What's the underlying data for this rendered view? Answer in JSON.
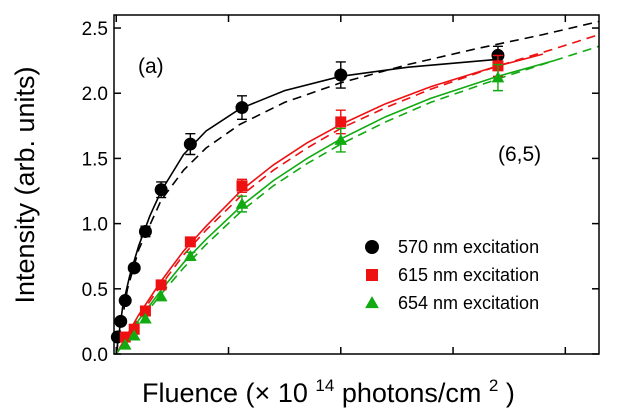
{
  "chart_data": {
    "type": "scatter",
    "xlabel_main": "Fluence (× 10",
    "xlabel_exp": "14",
    "xlabel_rest": " photons/cm",
    "xlabel_sup": "2",
    "xlabel_close": ")",
    "ylabel": "Intensity (arb. units)",
    "xlim": [
      -0.1,
      21.5
    ],
    "ylim": [
      0,
      2.6
    ],
    "xticks": [
      0,
      5,
      10,
      15,
      20
    ],
    "yticks": [
      {
        "value": 0.0,
        "label": "0.0"
      },
      {
        "value": 0.5,
        "label": "0.5"
      },
      {
        "value": 1.0,
        "label": "1.0"
      },
      {
        "value": 1.5,
        "label": "1.5"
      },
      {
        "value": 2.0,
        "label": "2.0"
      },
      {
        "value": 2.5,
        "label": "2.5"
      }
    ],
    "panel_label": "(a)",
    "chirality_label": "(6,5)",
    "grid": false,
    "legend_position": "bottom-right",
    "series": [
      {
        "name": "570 nm excitation",
        "color": "#000000",
        "marker": "circle",
        "points": [
          {
            "x": 0.05,
            "y": 0.13,
            "err": 0
          },
          {
            "x": 0.2,
            "y": 0.25,
            "err": 0
          },
          {
            "x": 0.4,
            "y": 0.41,
            "err": 0
          },
          {
            "x": 0.8,
            "y": 0.66,
            "err": 0
          },
          {
            "x": 1.3,
            "y": 0.94,
            "err": 0.04
          },
          {
            "x": 2.0,
            "y": 1.26,
            "err": 0.06
          },
          {
            "x": 3.3,
            "y": 1.61,
            "err": 0.08
          },
          {
            "x": 5.6,
            "y": 1.89,
            "err": 0.09
          },
          {
            "x": 10.0,
            "y": 2.14,
            "err": 0.1
          },
          {
            "x": 17.0,
            "y": 2.29,
            "err": 0.07
          }
        ],
        "fit_solid": [
          {
            "x": 0,
            "y": 0
          },
          {
            "x": 0.3,
            "y": 0.38
          },
          {
            "x": 0.6,
            "y": 0.6
          },
          {
            "x": 1.0,
            "y": 0.83
          },
          {
            "x": 1.5,
            "y": 1.06
          },
          {
            "x": 2.0,
            "y": 1.25
          },
          {
            "x": 3.0,
            "y": 1.53
          },
          {
            "x": 4.0,
            "y": 1.71
          },
          {
            "x": 5.5,
            "y": 1.88
          },
          {
            "x": 7.5,
            "y": 2.02
          },
          {
            "x": 10,
            "y": 2.13
          },
          {
            "x": 13,
            "y": 2.2
          },
          {
            "x": 17,
            "y": 2.26
          }
        ],
        "fit_dashed": [
          {
            "x": 0,
            "y": 0
          },
          {
            "x": 0.5,
            "y": 0.5
          },
          {
            "x": 1.0,
            "y": 0.8
          },
          {
            "x": 2.0,
            "y": 1.18
          },
          {
            "x": 3.0,
            "y": 1.41
          },
          {
            "x": 4.0,
            "y": 1.58
          },
          {
            "x": 5.5,
            "y": 1.76
          },
          {
            "x": 7.5,
            "y": 1.93
          },
          {
            "x": 10,
            "y": 2.08
          },
          {
            "x": 13,
            "y": 2.22
          },
          {
            "x": 16,
            "y": 2.34
          },
          {
            "x": 19,
            "y": 2.45
          },
          {
            "x": 21.5,
            "y": 2.55
          }
        ]
      },
      {
        "name": "615 nm excitation",
        "color": "#ee1111",
        "marker": "square",
        "points": [
          {
            "x": 0.4,
            "y": 0.13,
            "err": 0
          },
          {
            "x": 0.8,
            "y": 0.19,
            "err": 0
          },
          {
            "x": 1.3,
            "y": 0.33,
            "err": 0
          },
          {
            "x": 2.0,
            "y": 0.53,
            "err": 0
          },
          {
            "x": 3.3,
            "y": 0.86,
            "err": 0.03
          },
          {
            "x": 5.6,
            "y": 1.29,
            "err": 0.05
          },
          {
            "x": 10.0,
            "y": 1.78,
            "err": 0.09
          },
          {
            "x": 17.0,
            "y": 2.21,
            "err": 0.08
          }
        ],
        "fit_solid": [
          {
            "x": 0,
            "y": 0
          },
          {
            "x": 1,
            "y": 0.3
          },
          {
            "x": 2,
            "y": 0.56
          },
          {
            "x": 3,
            "y": 0.79
          },
          {
            "x": 4,
            "y": 0.98
          },
          {
            "x": 5.6,
            "y": 1.26
          },
          {
            "x": 7,
            "y": 1.45
          },
          {
            "x": 8.5,
            "y": 1.62
          },
          {
            "x": 10,
            "y": 1.76
          },
          {
            "x": 12,
            "y": 1.92
          },
          {
            "x": 14,
            "y": 2.05
          },
          {
            "x": 17,
            "y": 2.21
          },
          {
            "x": 19,
            "y": 2.3
          }
        ],
        "fit_dashed": [
          {
            "x": 0,
            "y": 0
          },
          {
            "x": 1,
            "y": 0.28
          },
          {
            "x": 2,
            "y": 0.53
          },
          {
            "x": 3,
            "y": 0.76
          },
          {
            "x": 4,
            "y": 0.95
          },
          {
            "x": 5.6,
            "y": 1.22
          },
          {
            "x": 7,
            "y": 1.41
          },
          {
            "x": 8.5,
            "y": 1.58
          },
          {
            "x": 10,
            "y": 1.73
          },
          {
            "x": 12,
            "y": 1.89
          },
          {
            "x": 14,
            "y": 2.03
          },
          {
            "x": 17,
            "y": 2.21
          },
          {
            "x": 19.5,
            "y": 2.34
          },
          {
            "x": 21.5,
            "y": 2.45
          }
        ]
      },
      {
        "name": "654 nm excitation",
        "color": "#11aa11",
        "marker": "triangle",
        "points": [
          {
            "x": 0.4,
            "y": 0.07,
            "err": 0
          },
          {
            "x": 0.8,
            "y": 0.14,
            "err": 0
          },
          {
            "x": 1.3,
            "y": 0.27,
            "err": 0
          },
          {
            "x": 2.0,
            "y": 0.44,
            "err": 0
          },
          {
            "x": 3.3,
            "y": 0.75,
            "err": 0.03
          },
          {
            "x": 5.6,
            "y": 1.15,
            "err": 0.06
          },
          {
            "x": 10.0,
            "y": 1.64,
            "err": 0.09
          },
          {
            "x": 17.0,
            "y": 2.12,
            "err": 0.1
          }
        ],
        "fit_solid": [
          {
            "x": 0,
            "y": 0
          },
          {
            "x": 1,
            "y": 0.26
          },
          {
            "x": 2,
            "y": 0.49
          },
          {
            "x": 3,
            "y": 0.7
          },
          {
            "x": 4,
            "y": 0.88
          },
          {
            "x": 5.6,
            "y": 1.14
          },
          {
            "x": 7,
            "y": 1.33
          },
          {
            "x": 8.5,
            "y": 1.5
          },
          {
            "x": 10,
            "y": 1.65
          },
          {
            "x": 12,
            "y": 1.82
          },
          {
            "x": 14,
            "y": 1.96
          },
          {
            "x": 17,
            "y": 2.13
          },
          {
            "x": 19.5,
            "y": 2.25
          }
        ],
        "fit_dashed": [
          {
            "x": 0,
            "y": 0
          },
          {
            "x": 1,
            "y": 0.24
          },
          {
            "x": 2,
            "y": 0.46
          },
          {
            "x": 3,
            "y": 0.66
          },
          {
            "x": 4,
            "y": 0.84
          },
          {
            "x": 5.6,
            "y": 1.1
          },
          {
            "x": 7,
            "y": 1.29
          },
          {
            "x": 8.5,
            "y": 1.46
          },
          {
            "x": 10,
            "y": 1.61
          },
          {
            "x": 12,
            "y": 1.78
          },
          {
            "x": 14,
            "y": 1.93
          },
          {
            "x": 17,
            "y": 2.11
          },
          {
            "x": 19.5,
            "y": 2.25
          },
          {
            "x": 21.5,
            "y": 2.36
          }
        ]
      }
    ]
  }
}
